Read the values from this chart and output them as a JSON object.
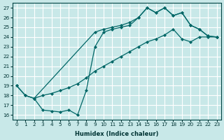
{
  "xlabel": "Humidex (Indice chaleur)",
  "bg_color": "#c8e8e8",
  "grid_color": "#ffffff",
  "line_color": "#006666",
  "xlim": [
    -0.5,
    23.5
  ],
  "ylim": [
    15.5,
    27.5
  ],
  "xticks": [
    0,
    1,
    2,
    3,
    4,
    5,
    6,
    7,
    8,
    9,
    10,
    11,
    12,
    13,
    14,
    15,
    16,
    17,
    18,
    19,
    20,
    21,
    22,
    23
  ],
  "yticks": [
    16,
    17,
    18,
    19,
    20,
    21,
    22,
    23,
    24,
    25,
    26,
    27
  ],
  "line1_x": [
    0,
    1,
    2,
    9,
    10,
    11,
    12,
    13,
    14,
    15,
    16,
    17,
    18,
    19,
    20,
    21,
    22,
    23
  ],
  "line1_y": [
    19.0,
    18.0,
    17.7,
    24.5,
    24.8,
    25.0,
    25.2,
    25.5,
    26.0,
    27.0,
    26.5,
    27.0,
    26.2,
    26.5,
    25.2,
    24.8,
    24.1,
    24.0
  ],
  "line2_x": [
    0,
    1,
    2,
    3,
    4,
    5,
    6,
    7,
    8,
    9,
    10,
    11,
    12,
    13,
    14,
    15,
    16,
    17,
    18,
    19,
    20,
    21,
    22,
    23
  ],
  "line2_y": [
    19.0,
    18.0,
    17.7,
    18.0,
    18.2,
    18.5,
    18.8,
    19.2,
    19.8,
    20.5,
    21.0,
    21.5,
    22.0,
    22.5,
    23.0,
    23.5,
    23.8,
    24.2,
    24.8,
    23.8,
    23.5,
    24.0,
    24.0,
    24.0
  ],
  "line3_x": [
    2,
    3,
    4,
    5,
    6,
    7,
    8,
    9,
    10,
    11,
    12,
    13,
    14,
    15,
    16,
    17,
    18,
    19,
    20,
    21,
    22,
    23
  ],
  "line3_y": [
    17.7,
    16.5,
    16.4,
    16.3,
    16.5,
    16.0,
    18.5,
    23.0,
    24.5,
    24.8,
    25.0,
    25.2,
    26.0,
    27.0,
    26.5,
    27.0,
    26.2,
    26.5,
    25.2,
    24.8,
    24.1,
    24.0
  ]
}
